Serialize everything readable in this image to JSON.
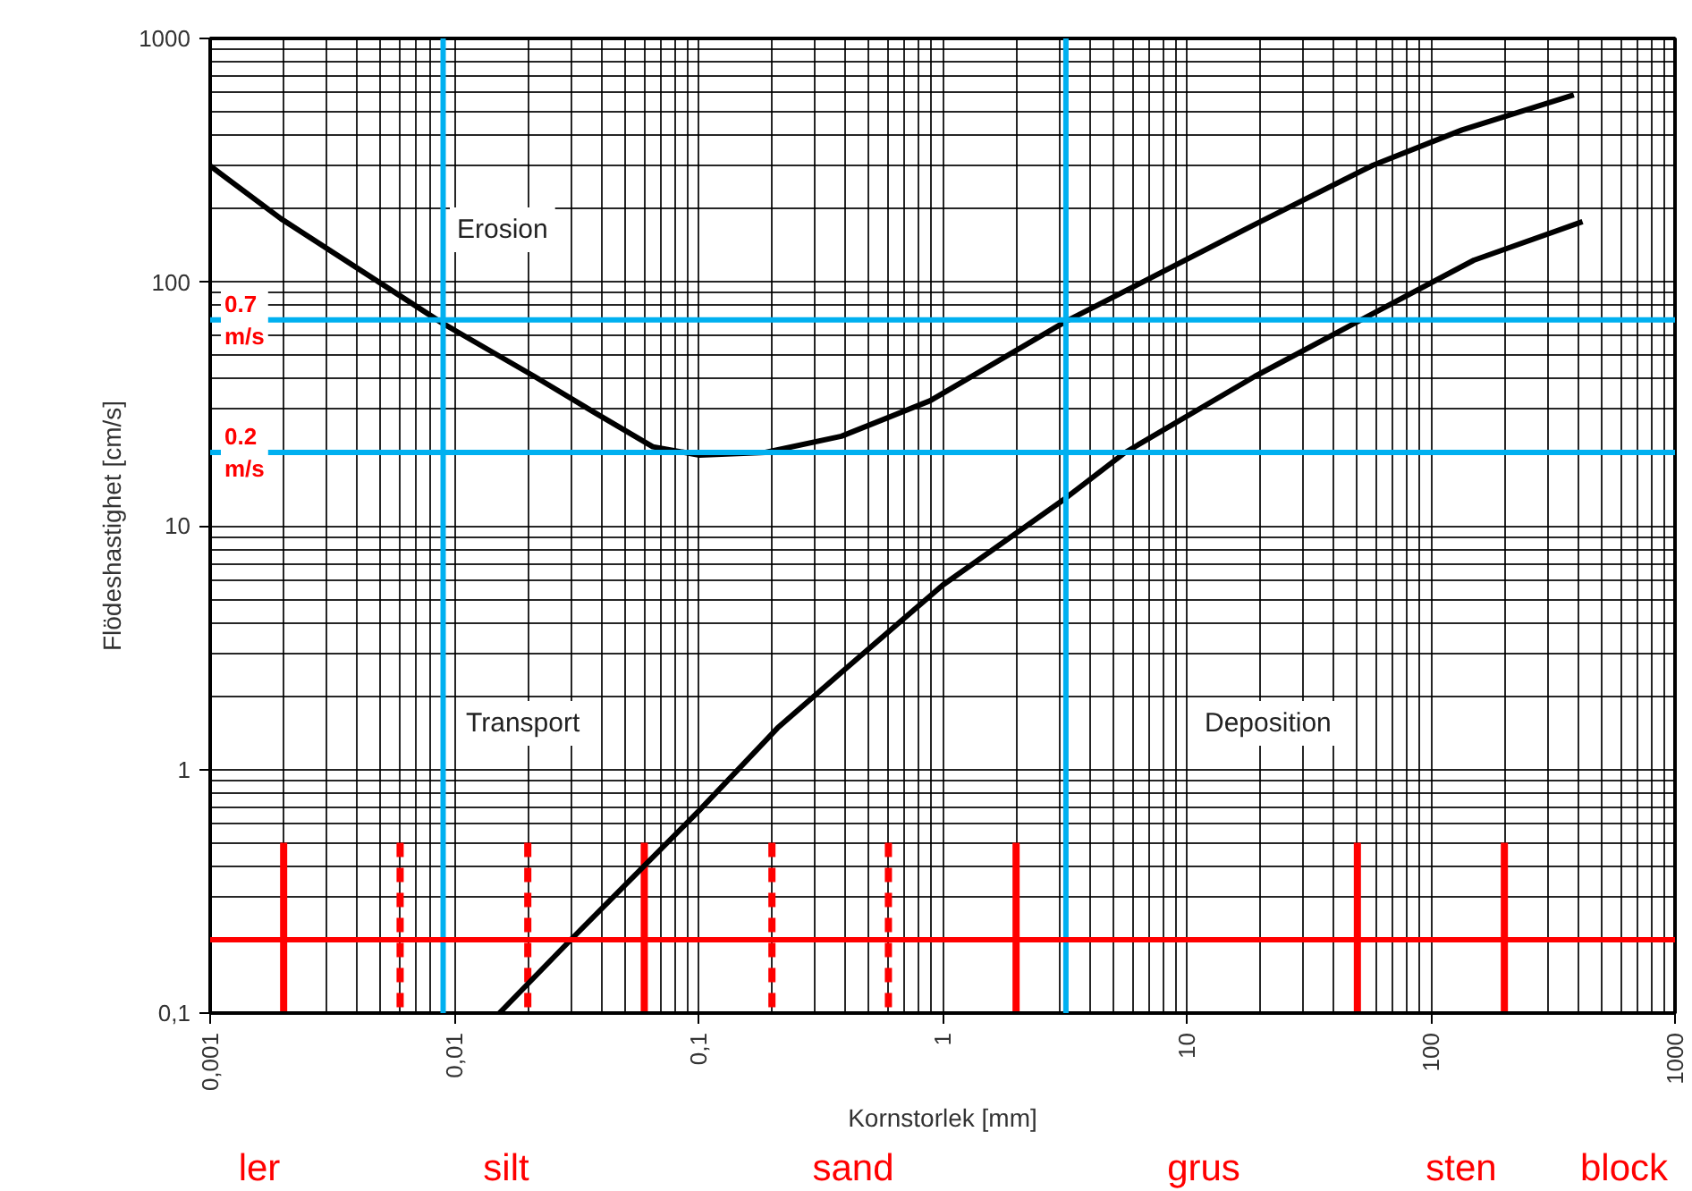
{
  "chart_data": {
    "type": "line",
    "xlabel": "Kornstorlek [mm]",
    "ylabel": "Flödeshastighet [cm/s]",
    "log": "xy",
    "grid": true,
    "marker": "none",
    "line_style": "solid",
    "xlim": [
      0.001,
      1000
    ],
    "ylim": [
      0.1,
      1000
    ],
    "xticks": [
      {
        "value": 0.001,
        "label": "0,001"
      },
      {
        "value": 0.01,
        "label": "0,01"
      },
      {
        "value": 0.1,
        "label": "0,1"
      },
      1,
      10,
      100,
      1000
    ],
    "yticks": [
      {
        "value": 0.1,
        "label": "0,1"
      },
      1,
      10,
      100,
      1000
    ],
    "series": [
      {
        "color": "#000000",
        "x": [
          0.001,
          0.00195,
          0.0089,
          0.0213,
          0.037,
          0.065,
          0.101,
          0.188,
          0.385,
          0.89,
          3.2,
          18.9,
          58,
          134,
          385
        ],
        "values": [
          300,
          182,
          68,
          41,
          29.4,
          21.1,
          19.5,
          20,
          23.3,
          32.6,
          69,
          172,
          302,
          421,
          587
        ]
      },
      {
        "color": "#000000",
        "x": [
          0.0153,
          0.03,
          0.101,
          0.211,
          0.385,
          1.0,
          3.2,
          5.6,
          19,
          49,
          150,
          418
        ],
        "values": [
          0.1,
          0.2,
          0.68,
          1.48,
          2.5,
          5.7,
          13,
          20,
          41,
          68,
          123,
          177
        ]
      }
    ],
    "ref_lines": [
      {
        "axis": "y",
        "value": 70,
        "label": "0.7 m/s",
        "color": "#00b0f0"
      },
      {
        "axis": "y",
        "value": 20,
        "label": "0.2 m/s",
        "color": "#00b0f0"
      },
      {
        "axis": "x",
        "value": 0.009,
        "color": "#00b0f0"
      },
      {
        "axis": "x",
        "value": 3.2,
        "color": "#00b0f0"
      },
      {
        "axis": "y",
        "value": 0.2,
        "color": "#ff0000"
      },
      {
        "axis": "x",
        "value": 0.002,
        "color": "#ff0000",
        "line_style": "solid"
      },
      {
        "axis": "x",
        "value": 0.006,
        "color": "#ff0000",
        "line_style": "dashed"
      },
      {
        "axis": "x",
        "value": 0.02,
        "color": "#ff0000",
        "line_style": "dashed"
      },
      {
        "axis": "x",
        "value": 0.06,
        "color": "#ff0000",
        "line_style": "solid"
      },
      {
        "axis": "x",
        "value": 0.2,
        "color": "#ff0000",
        "line_style": "dashed"
      },
      {
        "axis": "x",
        "value": 0.6,
        "color": "#ff0000",
        "line_style": "dashed"
      },
      {
        "axis": "x",
        "value": 2,
        "color": "#ff0000",
        "line_style": "solid"
      },
      {
        "axis": "x",
        "value": 50,
        "color": "#ff0000",
        "line_style": "solid"
      },
      {
        "axis": "x",
        "value": 200,
        "color": "#ff0000",
        "line_style": "solid"
      }
    ],
    "annotations": [
      "Erosion",
      "Transport",
      "Deposition",
      "ler",
      "silt",
      "sand",
      "grus",
      "sten",
      "block"
    ]
  }
}
